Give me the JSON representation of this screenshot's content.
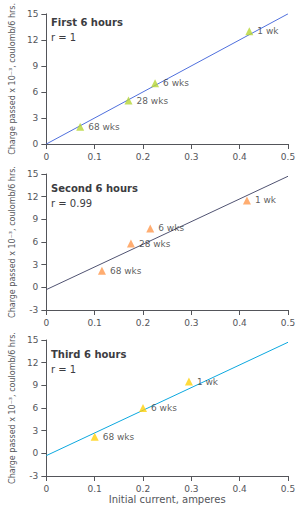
{
  "chart_data": [
    {
      "type": "scatter",
      "title": "First 6 hours",
      "annotations": [
        "r = 1"
      ],
      "x": [
        0.07,
        0.17,
        0.225,
        0.42
      ],
      "values": [
        2.0,
        5.0,
        7.0,
        13.0
      ],
      "point_labels": [
        "68 wks",
        "28 wks",
        "6 wks",
        "1 wk"
      ],
      "line": {
        "x": [
          0.0,
          0.5
        ],
        "values": [
          0.0,
          15.0
        ]
      },
      "marker": "triangle",
      "ylabel": "Charge passed x 10⁻³, coulomb/6 hrs.",
      "xlim": [
        0,
        0.5
      ],
      "xticks": [
        0,
        0.1,
        0.2,
        0.3,
        0.4,
        0.5
      ],
      "ylim": [
        0,
        15
      ],
      "yticks": [
        0,
        3,
        6,
        9,
        12,
        15
      ],
      "grid": false
    },
    {
      "type": "scatter",
      "title": "Second 6 hours",
      "annotations": [
        "r = 0.99"
      ],
      "x": [
        0.115,
        0.175,
        0.215,
        0.415
      ],
      "values": [
        2.2,
        5.8,
        7.8,
        11.5
      ],
      "point_labels": [
        "68 wks",
        "28 wks",
        "6 wks",
        "1 wk"
      ],
      "line": {
        "x": [
          0.0,
          0.5
        ],
        "values": [
          -0.3,
          14.7
        ]
      },
      "marker": "triangle",
      "ylabel": "Charge passed x 10⁻³, coulomb/6 hrs.",
      "xlim": [
        0,
        0.5
      ],
      "xticks": [
        0,
        0.1,
        0.2,
        0.3,
        0.4,
        0.5
      ],
      "ylim": [
        -3,
        15
      ],
      "yticks": [
        -3,
        0,
        3,
        6,
        9,
        12,
        15
      ],
      "grid": false
    },
    {
      "type": "scatter",
      "title": "Third 6 hours",
      "annotations": [
        "r = 1"
      ],
      "x": [
        0.1,
        0.2,
        0.295
      ],
      "values": [
        2.2,
        6.0,
        9.5
      ],
      "point_labels": [
        "68 wks",
        "6 wks",
        "1 wk"
      ],
      "line": {
        "x": [
          0.0,
          0.5
        ],
        "values": [
          -0.3,
          14.7
        ]
      },
      "marker": "triangle",
      "xlabel": "Initial current, amperes",
      "ylabel": "Charge passed x 10⁻³, coulomb/6 hrs.",
      "xlim": [
        0,
        0.5
      ],
      "xticks": [
        0,
        0.1,
        0.2,
        0.3,
        0.4,
        0.5
      ],
      "ylim": [
        -3,
        15
      ],
      "yticks": [
        -3,
        0,
        3,
        6,
        9,
        12,
        15
      ],
      "grid": false
    }
  ]
}
